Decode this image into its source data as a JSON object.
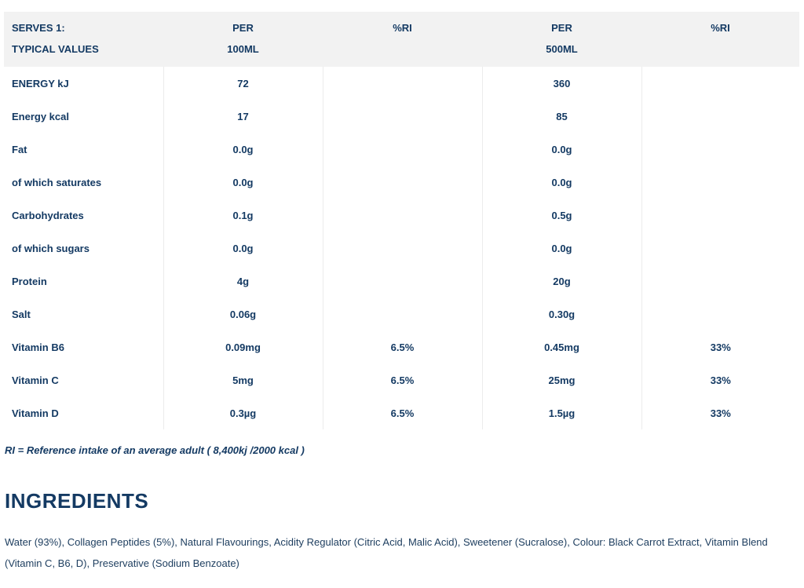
{
  "table": {
    "headers": [
      {
        "line1": "SERVES 1:",
        "line2": "TYPICAL VALUES"
      },
      {
        "line1": "PER",
        "line2": "100ML"
      },
      {
        "line1": "%RI",
        "line2": ""
      },
      {
        "line1": "PER",
        "line2": "500ML"
      },
      {
        "line1": "%RI",
        "line2": ""
      }
    ],
    "rows": [
      {
        "nutrient": "ENERGY kJ",
        "per100": "72",
        "ri100": "",
        "per500": "360",
        "ri500": ""
      },
      {
        "nutrient": "Energy kcal",
        "per100": "17",
        "ri100": "",
        "per500": "85",
        "ri500": ""
      },
      {
        "nutrient": "Fat",
        "per100": "0.0g",
        "ri100": "",
        "per500": "0.0g",
        "ri500": ""
      },
      {
        "nutrient": "of which saturates",
        "per100": "0.0g",
        "ri100": "",
        "per500": "0.0g",
        "ri500": ""
      },
      {
        "nutrient": "Carbohydrates",
        "per100": "0.1g",
        "ri100": "",
        "per500": "0.5g",
        "ri500": ""
      },
      {
        "nutrient": "of which sugars",
        "per100": "0.0g",
        "ri100": "",
        "per500": "0.0g",
        "ri500": ""
      },
      {
        "nutrient": "Protein",
        "per100": "4g",
        "ri100": "",
        "per500": "20g",
        "ri500": ""
      },
      {
        "nutrient": "Salt",
        "per100": "0.06g",
        "ri100": "",
        "per500": "0.30g",
        "ri500": ""
      },
      {
        "nutrient": "Vitamin B6",
        "per100": "0.09mg",
        "ri100": "6.5%",
        "per500": "0.45mg",
        "ri500": "33%"
      },
      {
        "nutrient": "Vitamin C",
        "per100": "5mg",
        "ri100": "6.5%",
        "per500": "25mg",
        "ri500": "33%"
      },
      {
        "nutrient": "Vitamin D",
        "per100": "0.3µg",
        "ri100": "6.5%",
        "per500": "1.5µg",
        "ri500": "33%"
      }
    ]
  },
  "ri_note": "RI = Reference intake of an average adult ( 8,400kj /2000 kcal )",
  "ingredients": {
    "title": "INGREDIENTS",
    "text": "Water (93%), Collagen Peptides (5%), Natural Flavourings, Acidity Regulator (Citric Acid, Malic Acid), Sweetener (Sucralose), Colour: Black Carrot Extract, Vitamin Blend (Vitamin C, B6, D), Preservative (Sodium Benzoate)"
  },
  "colors": {
    "text": "#143a63",
    "header_bg": "#f2f2f2",
    "divider": "#ececec"
  }
}
